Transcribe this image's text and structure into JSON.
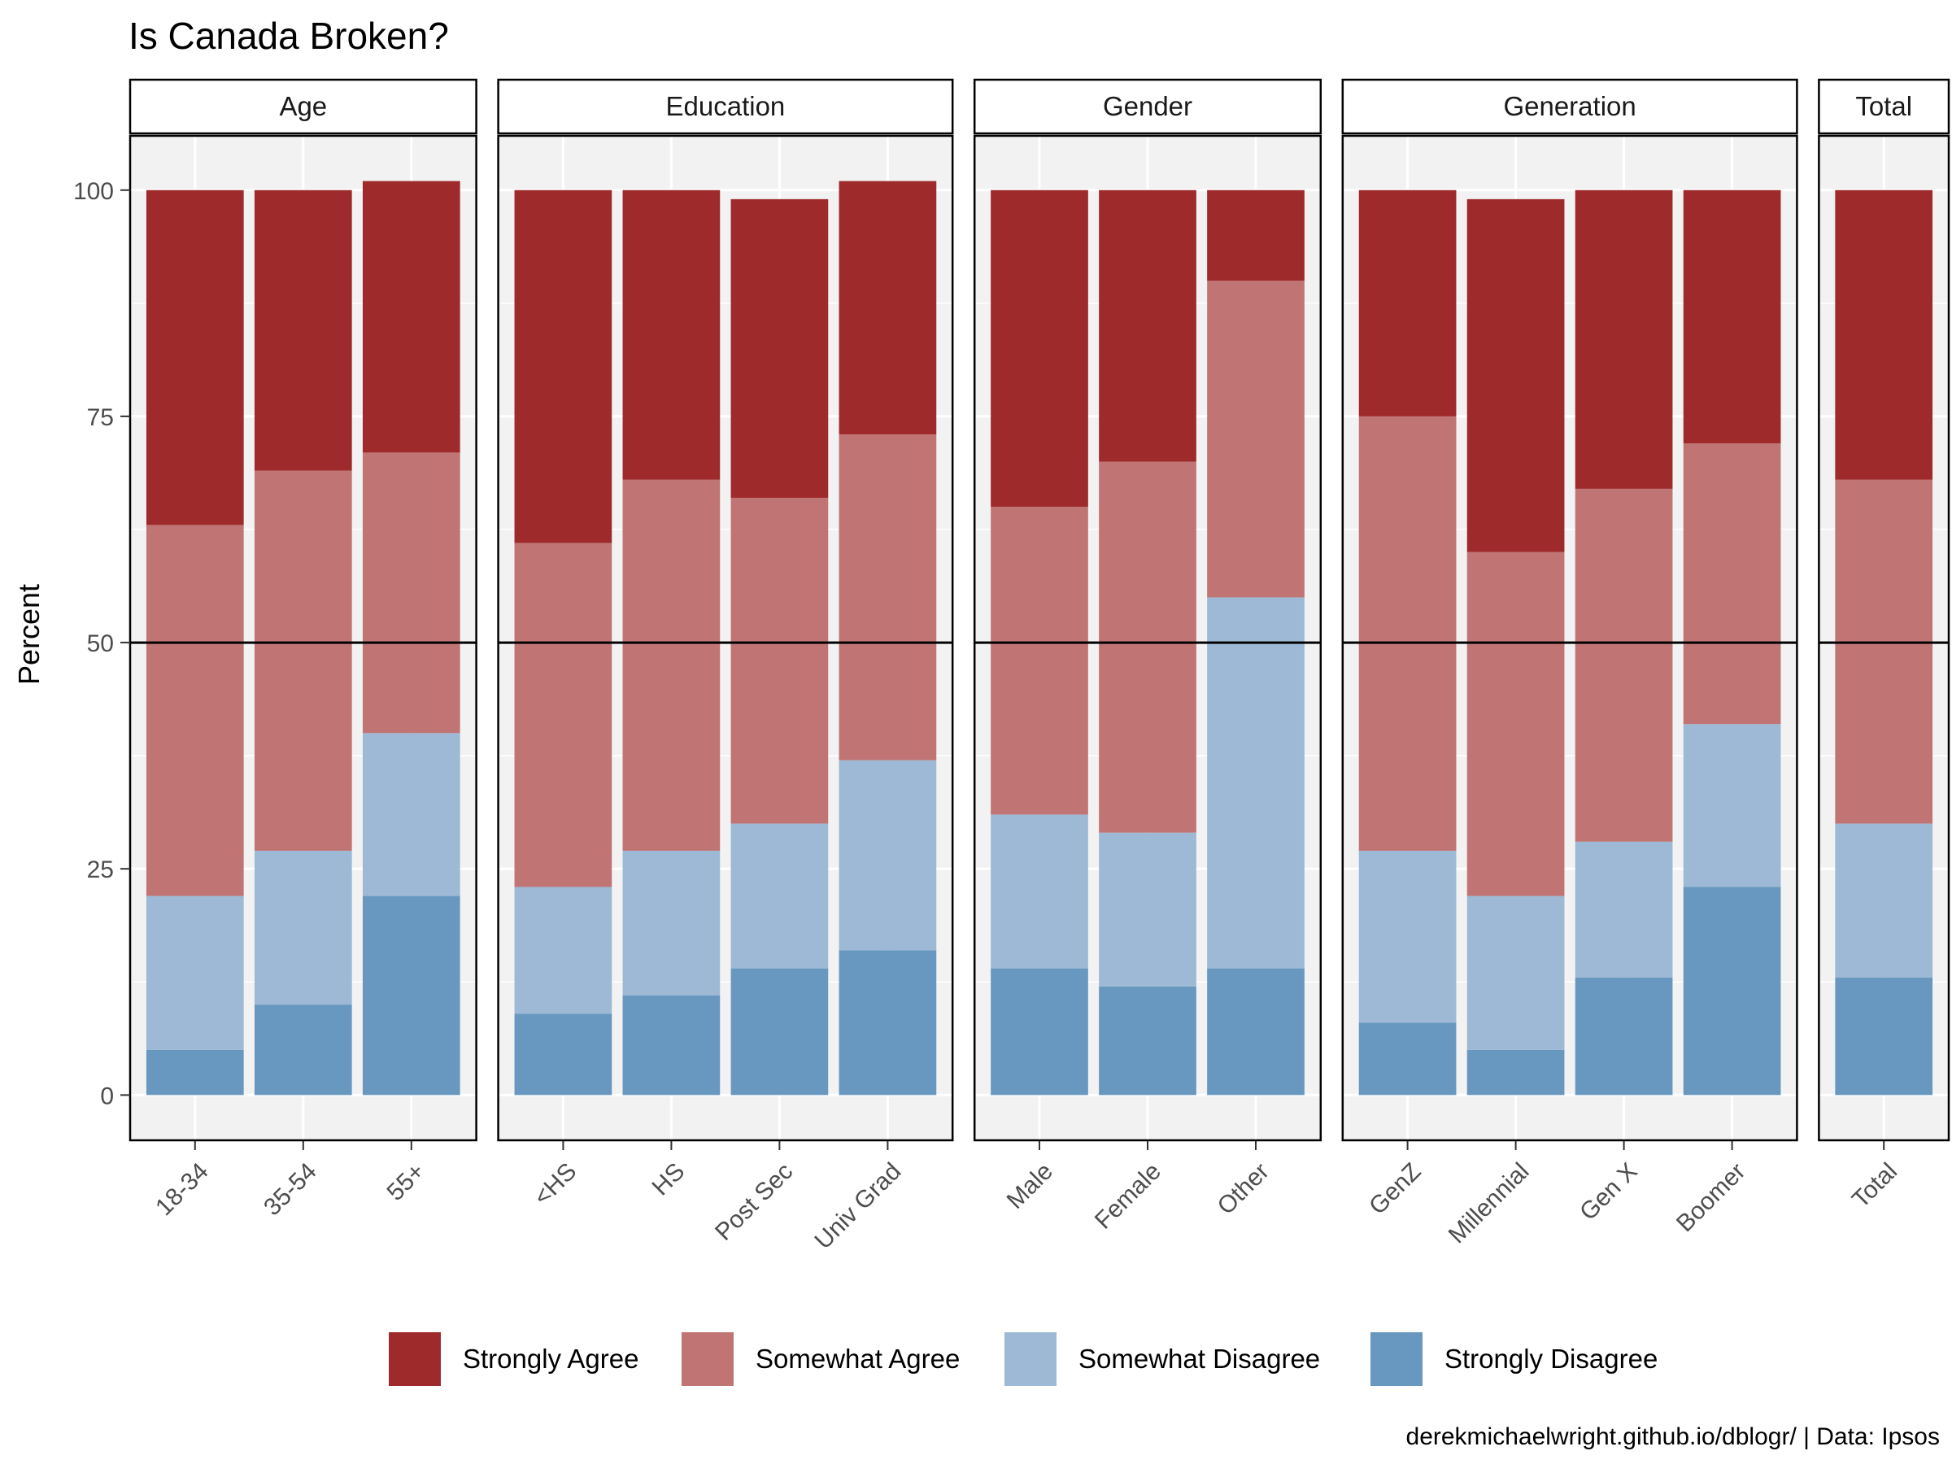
{
  "chart_data": {
    "type": "bar",
    "title": "Is Canada Broken?",
    "ylabel": "Percent",
    "xlabel": "",
    "ylim": [
      -5,
      106
    ],
    "yticks": [
      0,
      25,
      50,
      75,
      100
    ],
    "reference_line": 50,
    "grid": true,
    "legend_position": "bottom",
    "caption": "derekmichaelwright.github.io/dblogr/ | Data: Ipsos",
    "series": [
      {
        "name": "Strongly Agree",
        "color": "#9e2a2b"
      },
      {
        "name": "Somewhat Agree",
        "color": "#c07474"
      },
      {
        "name": "Somewhat Disagree",
        "color": "#9db9d5"
      },
      {
        "name": "Strongly Disagree",
        "color": "#6898c0"
      }
    ],
    "facets": [
      {
        "label": "Age",
        "categories": [
          {
            "name": "18-34",
            "values": [
              37,
              41,
              17,
              5
            ]
          },
          {
            "name": "35-54",
            "values": [
              31,
              42,
              17,
              10
            ]
          },
          {
            "name": "55+",
            "values": [
              30,
              31,
              18,
              22
            ]
          }
        ]
      },
      {
        "label": "Education",
        "categories": [
          {
            "name": "<HS",
            "values": [
              39,
              38,
              14,
              9
            ]
          },
          {
            "name": "HS",
            "values": [
              32,
              41,
              16,
              11
            ]
          },
          {
            "name": "Post Sec",
            "values": [
              33,
              36,
              16,
              14
            ]
          },
          {
            "name": "Univ Grad",
            "values": [
              28,
              36,
              21,
              16
            ]
          }
        ]
      },
      {
        "label": "Gender",
        "categories": [
          {
            "name": "Male",
            "values": [
              35,
              34,
              17,
              14
            ]
          },
          {
            "name": "Female",
            "values": [
              30,
              41,
              17,
              12
            ]
          },
          {
            "name": "Other",
            "values": [
              10,
              35,
              41,
              14
            ]
          }
        ]
      },
      {
        "label": "Generation",
        "categories": [
          {
            "name": "GenZ",
            "values": [
              25,
              48,
              19,
              8
            ]
          },
          {
            "name": "Millennial",
            "values": [
              39,
              38,
              17,
              5
            ]
          },
          {
            "name": "Gen X",
            "values": [
              33,
              39,
              15,
              13
            ]
          },
          {
            "name": "Boomer",
            "values": [
              28,
              31,
              18,
              23
            ]
          }
        ]
      },
      {
        "label": "Total",
        "categories": [
          {
            "name": "Total",
            "values": [
              32,
              38,
              17,
              13
            ]
          }
        ]
      }
    ]
  }
}
